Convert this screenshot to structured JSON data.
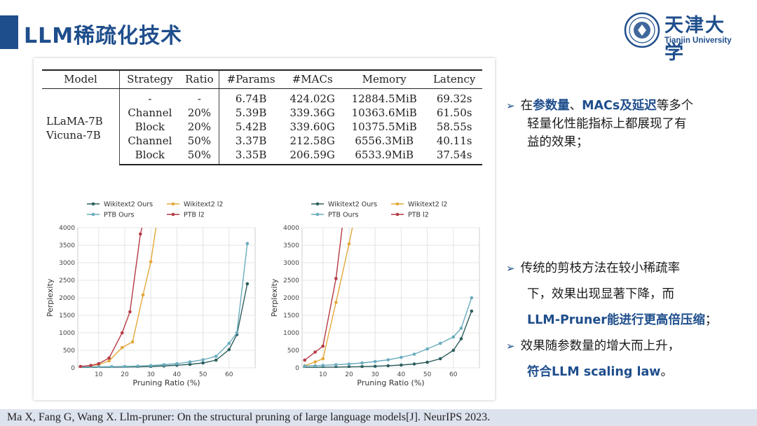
{
  "slide": {
    "title": "LLM稀疏化技术",
    "logo": {
      "name": "天津大学",
      "sub": "Tianjin University"
    }
  },
  "table": {
    "headers": [
      "Model",
      "Strategy",
      "Ratio",
      "#Params",
      "#MACs",
      "Memory",
      "Latency"
    ],
    "model_lines": [
      "LLaMA-7B",
      "Vicuna-7B"
    ],
    "rows": [
      [
        "-",
        "-",
        "6.74B",
        "424.02G",
        "12884.5MiB",
        "69.32s"
      ],
      [
        "Channel",
        "20%",
        "5.39B",
        "339.36G",
        "10363.6MiB",
        "61.50s"
      ],
      [
        "Block",
        "20%",
        "5.42B",
        "339.60G",
        "10375.5MiB",
        "58.55s"
      ],
      [
        "Channel",
        "50%",
        "3.37B",
        "212.58G",
        "6556.3MiB",
        "40.11s"
      ],
      [
        "Block",
        "50%",
        "3.35B",
        "206.59G",
        "6533.9MiB",
        "37.54s"
      ]
    ]
  },
  "chart_data": [
    {
      "type": "line",
      "xlabel": "Pruning Ratio (%)",
      "ylabel": "Perplexity",
      "xlim": [
        2,
        70
      ],
      "ylim": [
        0,
        4000
      ],
      "xticks": [
        10,
        20,
        30,
        40,
        50,
        60
      ],
      "yticks": [
        0,
        500,
        1000,
        1500,
        2000,
        2500,
        3000,
        3500,
        4000
      ],
      "grid": true,
      "legend": "top",
      "series": [
        {
          "name": "Wikitext2 Ours",
          "color": "#2e5f5f",
          "x": [
            3,
            7,
            10,
            15,
            20,
            25,
            30,
            35,
            40,
            45,
            50,
            55,
            60,
            63,
            67
          ],
          "y": [
            12,
            15,
            18,
            20,
            25,
            30,
            40,
            55,
            75,
            100,
            140,
            220,
            520,
            950,
            2400
          ]
        },
        {
          "name": "Wikitext2 l2",
          "color": "#e3a83a",
          "x": [
            3,
            7,
            10,
            14,
            19,
            23,
            27,
            30,
            34
          ],
          "y": [
            30,
            60,
            90,
            200,
            580,
            740,
            2080,
            3030,
            5000
          ]
        },
        {
          "name": "PTB Ours",
          "color": "#6aacbe",
          "x": [
            3,
            7,
            10,
            15,
            20,
            25,
            30,
            35,
            40,
            45,
            50,
            55,
            60,
            63,
            67
          ],
          "y": [
            22,
            28,
            32,
            35,
            40,
            50,
            65,
            90,
            120,
            170,
            230,
            330,
            700,
            1000,
            3550
          ]
        },
        {
          "name": "PTB l2",
          "color": "#b53a46",
          "x": [
            3,
            7,
            10,
            14,
            19,
            22,
            26,
            30
          ],
          "y": [
            40,
            70,
            120,
            280,
            1000,
            1600,
            3820,
            5000
          ]
        }
      ]
    },
    {
      "type": "line",
      "xlabel": "Pruning Ratio (%)",
      "ylabel": "Perplexity",
      "xlim": [
        2,
        70
      ],
      "ylim": [
        0,
        4000
      ],
      "xticks": [
        10,
        20,
        30,
        40,
        50,
        60
      ],
      "yticks": [
        0,
        500,
        1000,
        1500,
        2000,
        2500,
        3000,
        3500,
        4000
      ],
      "grid": true,
      "legend": "top",
      "series": [
        {
          "name": "Wikitext2 Ours",
          "color": "#2e5f5f",
          "x": [
            3,
            7,
            10,
            15,
            20,
            25,
            30,
            35,
            40,
            45,
            50,
            55,
            60,
            63,
            67
          ],
          "y": [
            10,
            14,
            18,
            22,
            28,
            35,
            45,
            60,
            80,
            110,
            160,
            260,
            500,
            830,
            1620
          ]
        },
        {
          "name": "Wikitext2 l2",
          "color": "#e3a83a",
          "x": [
            3,
            7,
            10,
            15,
            20,
            24
          ],
          "y": [
            60,
            170,
            260,
            1870,
            3540,
            5000
          ]
        },
        {
          "name": "PTB Ours",
          "color": "#6aacbe",
          "x": [
            3,
            7,
            10,
            15,
            20,
            25,
            30,
            35,
            40,
            45,
            50,
            55,
            60,
            63,
            67
          ],
          "y": [
            50,
            60,
            70,
            90,
            110,
            140,
            180,
            230,
            300,
            390,
            540,
            700,
            880,
            1130,
            2000
          ]
        },
        {
          "name": "PTB l2",
          "color": "#b53a46",
          "x": [
            3,
            7,
            10,
            15,
            19
          ],
          "y": [
            220,
            450,
            620,
            2550,
            5000
          ]
        }
      ]
    }
  ],
  "bullets": {
    "b1": {
      "p1": "在",
      "h1": "参数量",
      "p2": "、",
      "h2": "MACs及延迟",
      "p3": "等多个",
      "line2": "轻量化性能指标上都展现了有",
      "line3": "益的效果；"
    },
    "b2": {
      "line1": "传统的剪枝方法在较小稀疏率",
      "line2": "下，效果出现显著下降，而",
      "h1": "LLM-Pruner能进行更高倍压缩",
      "p3": "；"
    },
    "b3": {
      "line1": "效果随参数量的增大而上升，",
      "h1": "符合LLM scaling law",
      "p2": "。"
    }
  },
  "footer": "Ma X, Fang G, Wang X. Llm-pruner: On the structural pruning of large language models[J]. NeurIPS 2023."
}
